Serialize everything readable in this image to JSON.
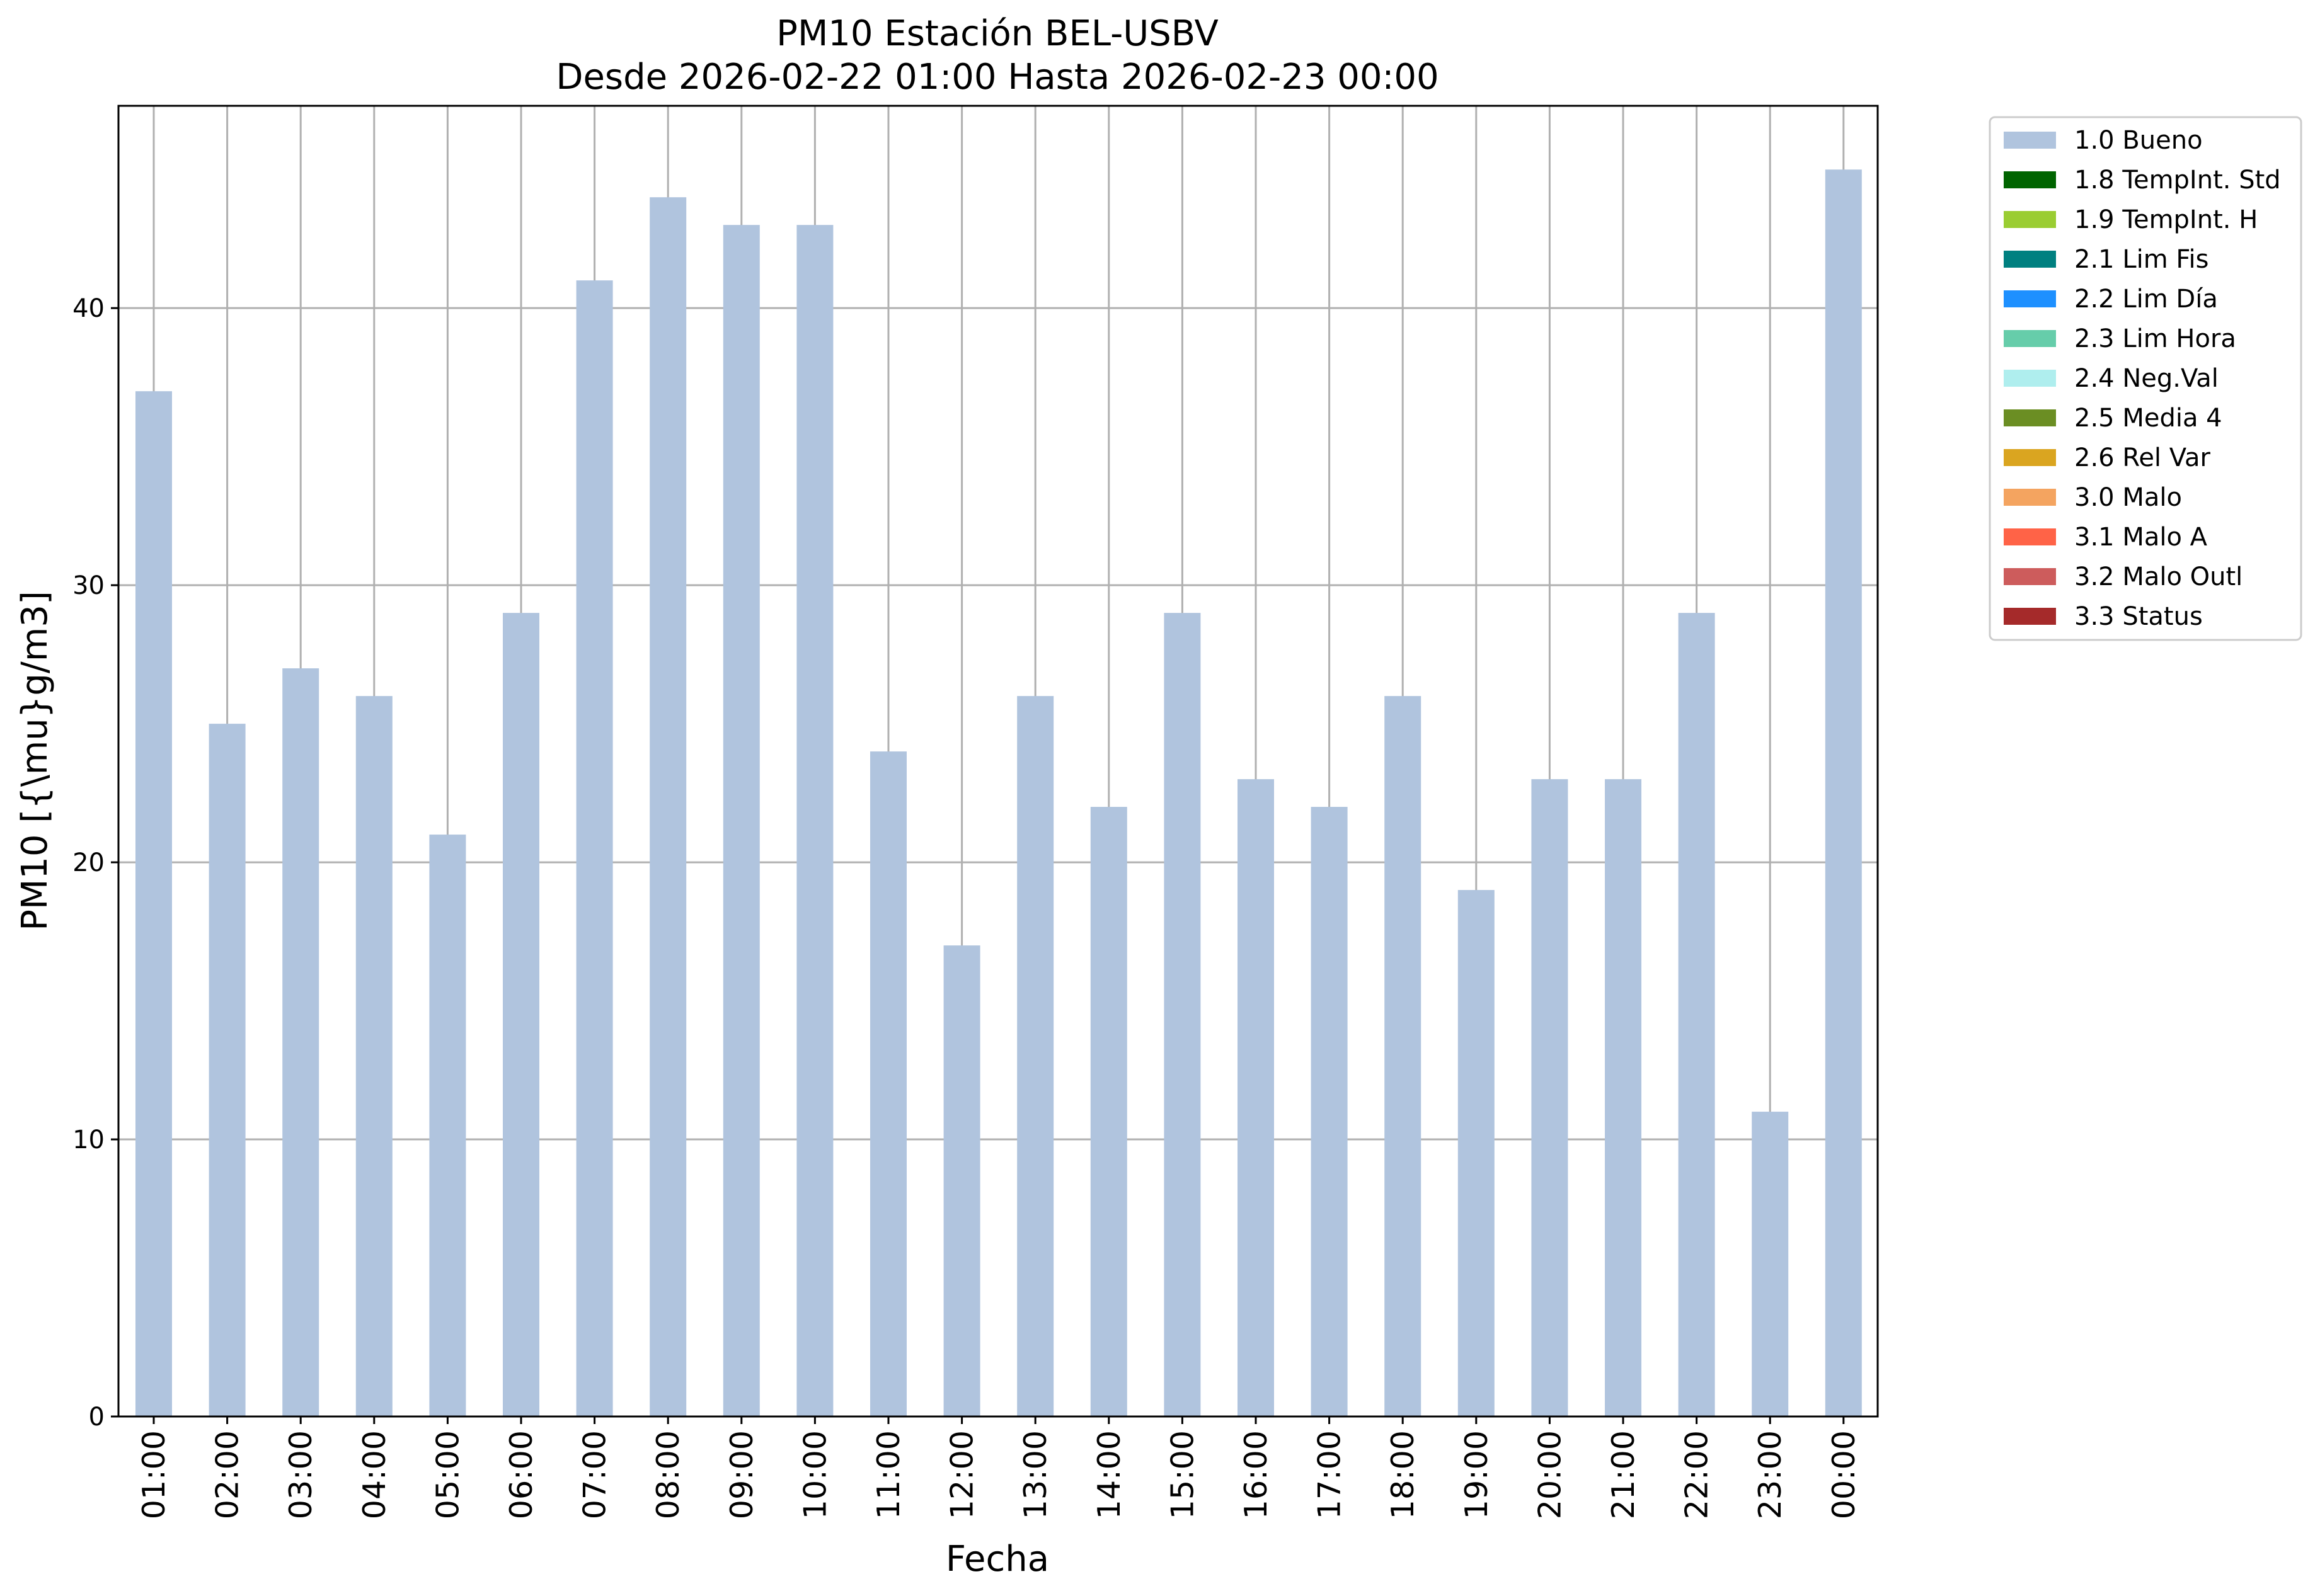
{
  "chart_data": {
    "type": "bar",
    "title": "PM10 Estación BEL-USBV",
    "subtitle": "Desde 2026-02-22 01:00 Hasta 2026-02-23 00:00",
    "xlabel": "Fecha",
    "ylabel": "PM10 [{\\mu}g/m3]",
    "categories": [
      "01:00",
      "02:00",
      "03:00",
      "04:00",
      "05:00",
      "06:00",
      "07:00",
      "08:00",
      "09:00",
      "10:00",
      "11:00",
      "12:00",
      "13:00",
      "14:00",
      "15:00",
      "16:00",
      "17:00",
      "18:00",
      "19:00",
      "20:00",
      "21:00",
      "22:00",
      "23:00",
      "00:00"
    ],
    "series": [
      {
        "name": "1.0 Bueno",
        "color": "#b0c4de",
        "values": [
          37,
          25,
          27,
          26,
          21,
          29,
          41,
          44,
          43,
          43,
          24,
          17,
          26,
          22,
          29,
          23,
          22,
          26,
          19,
          23,
          23,
          29,
          11,
          45
        ]
      }
    ],
    "ylim": [
      0,
      47.3
    ],
    "yticks": [
      0,
      10,
      20,
      30,
      40
    ],
    "grid": true,
    "legend_placement": "outside-top-right",
    "legend": [
      {
        "label": "1.0 Bueno",
        "color": "#b0c4de"
      },
      {
        "label": "1.8 TempInt. Std",
        "color": "#006400"
      },
      {
        "label": "1.9 TempInt. H",
        "color": "#9acd32"
      },
      {
        "label": "2.1 Lim Fis",
        "color": "#008080"
      },
      {
        "label": "2.2 Lim Día",
        "color": "#1e90ff"
      },
      {
        "label": "2.3 Lim Hora",
        "color": "#66cdaa"
      },
      {
        "label": "2.4 Neg.Val",
        "color": "#afeeee"
      },
      {
        "label": "2.5 Media 4",
        "color": "#6b8e23"
      },
      {
        "label": "2.6 Rel Var",
        "color": "#daa520"
      },
      {
        "label": "3.0 Malo",
        "color": "#f4a460"
      },
      {
        "label": "3.1 Malo A",
        "color": "#ff6347"
      },
      {
        "label": "3.2 Malo Outl",
        "color": "#cd5c5c"
      },
      {
        "label": "3.3 Status",
        "color": "#a52a2a"
      }
    ]
  }
}
